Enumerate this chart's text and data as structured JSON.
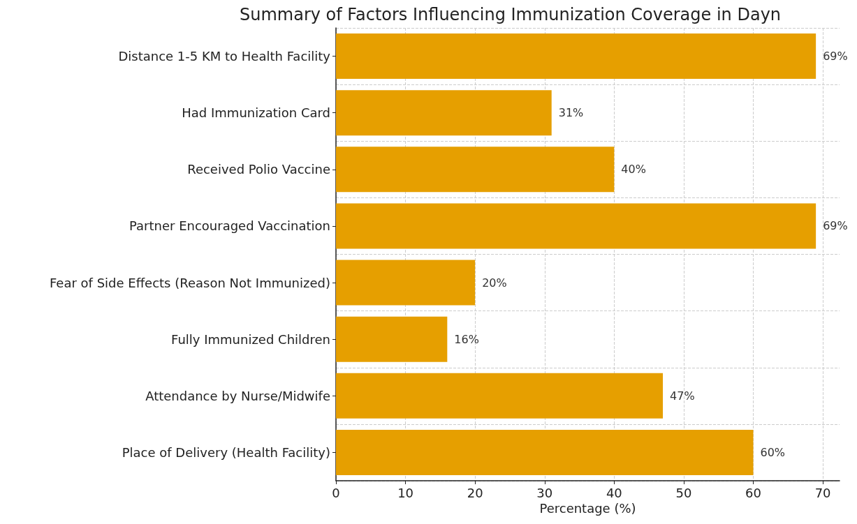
{
  "chart_data": {
    "type": "bar",
    "orientation": "horizontal",
    "title": "Summary of Factors Influencing Immunization Coverage in Dayn",
    "xlabel": "Percentage (%)",
    "categories": [
      "Distance 1-5 KM to Health Facility",
      "Had Immunization Card",
      "Received Polio Vaccine",
      "Partner Encouraged Vaccination",
      "Fear of Side Effects (Reason Not Immunized)",
      "Fully Immunized Children",
      "Attendance by Nurse/Midwife",
      "Place of Delivery (Health Facility)"
    ],
    "values": [
      69,
      31,
      40,
      69,
      20,
      16,
      47,
      60
    ],
    "value_labels": [
      "69%",
      "31%",
      "40%",
      "69%",
      "20%",
      "16%",
      "47%",
      "60%"
    ],
    "color": "#e69f00",
    "xlim": [
      0,
      72.4
    ],
    "xticks": [
      0,
      10,
      20,
      30,
      40,
      50,
      60,
      70
    ],
    "grid": true
  }
}
